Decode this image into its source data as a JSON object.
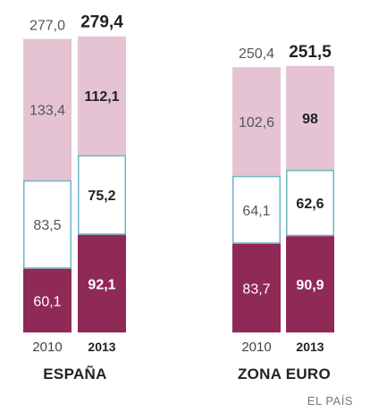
{
  "chart_data": {
    "type": "bar",
    "stacked": true,
    "groups": [
      {
        "name": "ESPAÑA",
        "bars": [
          {
            "year": "2010",
            "total": "277,0",
            "segments": {
              "top": "133,4",
              "middle": "83,5",
              "bottom": "60,1"
            },
            "values": [
              60.1,
              83.5,
              133.4
            ],
            "emphasis": false
          },
          {
            "year": "2013",
            "total": "279,4",
            "segments": {
              "top": "112,1",
              "middle": "75,2",
              "bottom": "92,1"
            },
            "values": [
              92.1,
              75.2,
              112.1
            ],
            "emphasis": true
          }
        ]
      },
      {
        "name": "ZONA EURO",
        "bars": [
          {
            "year": "2010",
            "total": "250,4",
            "segments": {
              "top": "102,6",
              "middle": "64,1",
              "bottom": "83,7"
            },
            "values": [
              83.7,
              64.1,
              102.6
            ],
            "emphasis": false
          },
          {
            "year": "2013",
            "total": "251,5",
            "segments": {
              "top": "98",
              "middle": "62,6",
              "bottom": "90,9"
            },
            "values": [
              90.9,
              62.6,
              98.0
            ],
            "emphasis": true
          }
        ]
      }
    ],
    "colors": {
      "top": "#e5c3d2",
      "middle": "#ffffff",
      "middle_border": "#6fb3c4",
      "bottom": "#8f2a57"
    }
  },
  "source": "EL PAÍS"
}
